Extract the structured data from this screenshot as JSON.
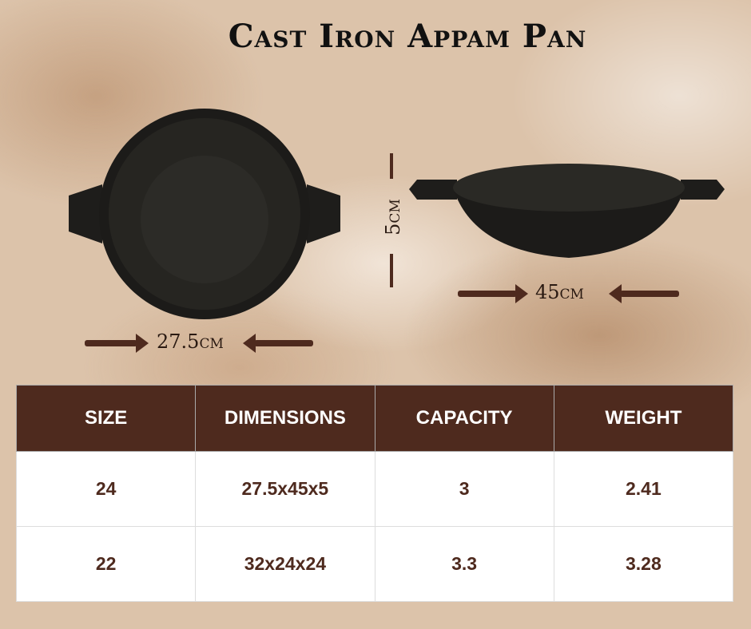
{
  "title": "Cast Iron Appam Pan",
  "dimensions": {
    "top_width": "27.5cm",
    "side_width": "45cm",
    "height": "5cm"
  },
  "table": {
    "headers": [
      "SIZE",
      "DIMENSIONS",
      "CAPACITY",
      "WEIGHT"
    ],
    "rows": [
      [
        "24",
        "27.5x45x5",
        "3",
        "2.41"
      ],
      [
        "22",
        "32x24x24",
        "3.3",
        "3.28"
      ]
    ]
  },
  "colors": {
    "header_bg": "#4e2a1e",
    "accent": "#4e2a1e",
    "background": "#dcc3aa"
  }
}
